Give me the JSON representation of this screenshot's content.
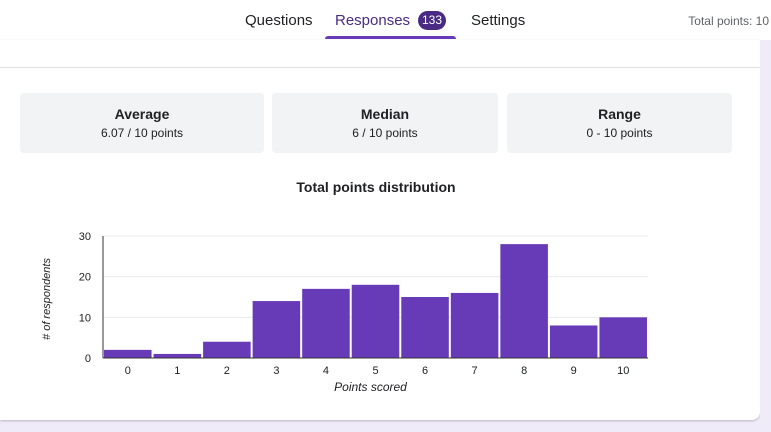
{
  "header": {
    "tabs": [
      {
        "label": "Questions"
      },
      {
        "label": "Responses",
        "badge": "133"
      },
      {
        "label": "Settings"
      }
    ],
    "total_points": "Total points: 10",
    "accent_color": "#673ab7",
    "badge_color": "#4a2b84"
  },
  "stats": {
    "average": {
      "label": "Average",
      "value": "6.07 / 10 points"
    },
    "median": {
      "label": "Median",
      "value": "6 / 10 points"
    },
    "range": {
      "label": "Range",
      "value": "0 - 10 points"
    }
  },
  "chart_data": {
    "type": "bar",
    "title": "Total points distribution",
    "xlabel": "Points scored",
    "ylabel": "# of respondents",
    "categories": [
      "0",
      "1",
      "2",
      "3",
      "4",
      "5",
      "6",
      "7",
      "8",
      "9",
      "10"
    ],
    "values": [
      2,
      1,
      4,
      14,
      17,
      18,
      15,
      16,
      28,
      8,
      10
    ],
    "ylim": [
      0,
      30
    ],
    "yticks": [
      0,
      10,
      20,
      30
    ],
    "grid": true,
    "bar_color": "#673ab7"
  }
}
